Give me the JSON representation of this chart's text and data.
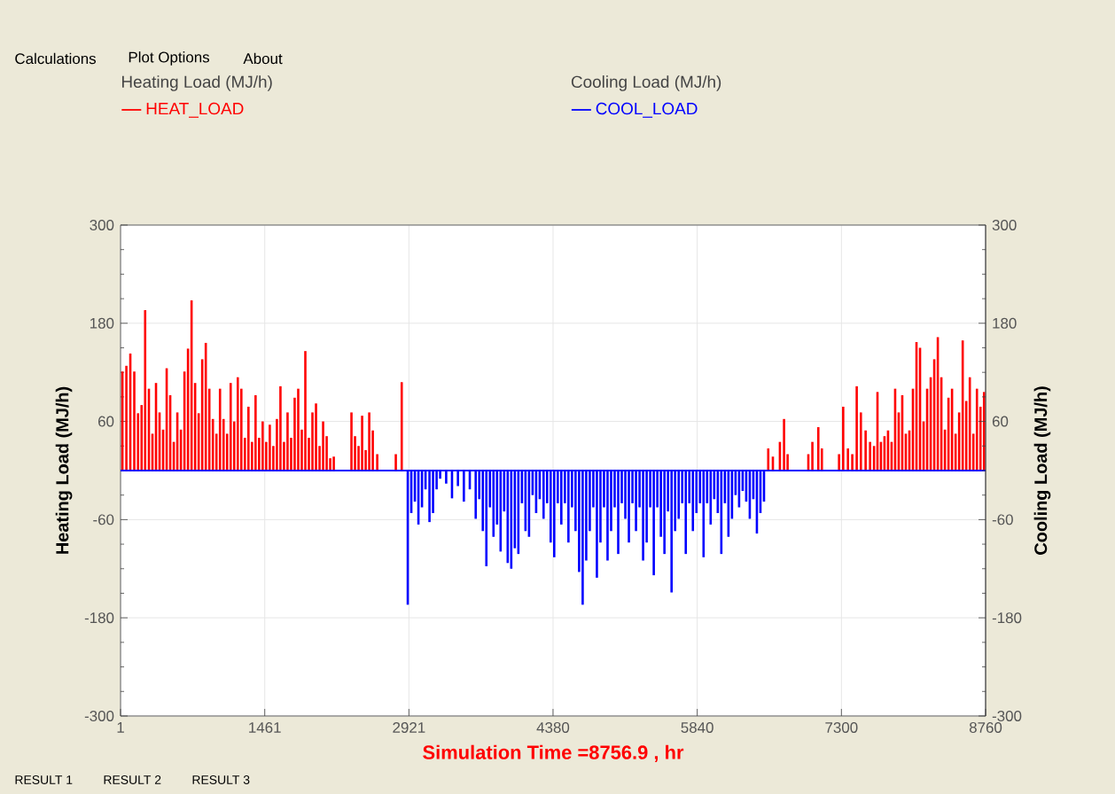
{
  "chart_data": {
    "type": "bar",
    "xlabel": "Simulation Time =8756.9 , hr",
    "ylabel": "Heating Load (MJ/h)",
    "y2label": "Cooling Load (MJ/h)",
    "annotations": [
      "Calculations",
      "Plot Options",
      "About",
      "RESULT 1",
      "RESULT 2",
      "RESULT 3"
    ],
    "xlim": [
      1,
      8760
    ],
    "xticks": [
      1,
      1461,
      2921,
      4380,
      5840,
      7300,
      8760
    ],
    "ylim": [
      -300,
      300
    ],
    "yticks": [
      -300,
      -180,
      -60,
      60,
      180,
      300
    ],
    "y2lim": [
      -300,
      300
    ],
    "y2ticks": [
      -300,
      -180,
      -60,
      60,
      180,
      300
    ],
    "grid": true,
    "legend": "top",
    "ref_lines": [
      {
        "axis": "y",
        "value": 0,
        "color": "#0000ff"
      }
    ],
    "series": [
      {
        "name": "HEAT_LOAD",
        "color": "#ff0000",
        "axis": "y",
        "x": [
          20,
          60,
          100,
          140,
          178,
          214,
          250,
          288,
          324,
          360,
          396,
          432,
          468,
          504,
          540,
          576,
          612,
          648,
          684,
          720,
          756,
          792,
          828,
          864,
          900,
          936,
          972,
          1008,
          1044,
          1080,
          1116,
          1152,
          1188,
          1224,
          1260,
          1296,
          1332,
          1368,
          1404,
          1440,
          1476,
          1512,
          1548,
          1584,
          1620,
          1656,
          1692,
          1728,
          1764,
          1800,
          1836,
          1872,
          1908,
          1944,
          1980,
          2016,
          2052,
          2088,
          2124,
          2160,
          2339,
          2375,
          2411,
          2447,
          2483,
          2519,
          2555,
          2600,
          2788,
          2848,
          6559,
          6606,
          6677,
          6719,
          6755,
          6965,
          7006,
          7066,
          7102,
          7276,
          7318,
          7366,
          7410,
          7455,
          7497,
          7545,
          7590,
          7630,
          7665,
          7700,
          7736,
          7772,
          7808,
          7844,
          7880,
          7916,
          7952,
          7988,
          8024,
          8060,
          8096,
          8132,
          8168,
          8204,
          8240,
          8276,
          8312,
          8348,
          8384,
          8420,
          8456,
          8492,
          8528,
          8564,
          8600,
          8636,
          8672,
          8708,
          8744
        ],
        "values": [
          121,
          128,
          143,
          121,
          70,
          80,
          196,
          100,
          45,
          107,
          71,
          50,
          125,
          92,
          35,
          71,
          50,
          121,
          149,
          208,
          107,
          70,
          136,
          156,
          100,
          63,
          45,
          100,
          63,
          45,
          107,
          60,
          114,
          100,
          40,
          78,
          35,
          92,
          40,
          60,
          35,
          56,
          30,
          63,
          103,
          35,
          71,
          40,
          89,
          100,
          50,
          146,
          40,
          71,
          82,
          30,
          60,
          42,
          15,
          17,
          71,
          42,
          30,
          67,
          25,
          71,
          49,
          20,
          20,
          108,
          27,
          17,
          35,
          63,
          20,
          20,
          35,
          53,
          27,
          20,
          78,
          27,
          20,
          103,
          71,
          49,
          35,
          30,
          96,
          35,
          42,
          49,
          35,
          100,
          71,
          92,
          45,
          49,
          100,
          157,
          150,
          60,
          100,
          114,
          136,
          163,
          114,
          50,
          89,
          100,
          45,
          71,
          159,
          85,
          114,
          45,
          100,
          78,
          96
        ]
      },
      {
        "name": "COOL_LOAD",
        "color": "#0000ff",
        "axis": "y2",
        "x": [
          2909,
          2945,
          2981,
          3017,
          3053,
          3089,
          3129,
          3165,
          3201,
          3237,
          3298,
          3357,
          3417,
          3477,
          3537,
          3597,
          3633,
          3669,
          3705,
          3741,
          3777,
          3813,
          3849,
          3885,
          3921,
          3957,
          3993,
          4029,
          4065,
          4101,
          4137,
          4173,
          4209,
          4245,
          4284,
          4320,
          4356,
          4392,
          4428,
          4464,
          4500,
          4536,
          4572,
          4608,
          4644,
          4680,
          4716,
          4752,
          4788,
          4824,
          4860,
          4896,
          4932,
          4968,
          5004,
          5040,
          5076,
          5112,
          5148,
          5184,
          5220,
          5256,
          5292,
          5328,
          5364,
          5400,
          5436,
          5472,
          5508,
          5544,
          5580,
          5616,
          5652,
          5688,
          5724,
          5760,
          5796,
          5832,
          5868,
          5904,
          5940,
          5976,
          6012,
          6048,
          6084,
          6120,
          6156,
          6192,
          6228,
          6264,
          6300,
          6336,
          6372,
          6408,
          6444,
          6480,
          6516
        ],
        "values": [
          -164,
          -52,
          -38,
          -66,
          -45,
          -23,
          -63,
          -52,
          -23,
          -10,
          -16,
          -34,
          -19,
          -38,
          -23,
          -59,
          -35,
          -74,
          -117,
          -45,
          -81,
          -66,
          -99,
          -50,
          -113,
          -120,
          -95,
          -102,
          -40,
          -74,
          -81,
          -30,
          -52,
          -35,
          -59,
          -40,
          -88,
          -106,
          -40,
          -66,
          -40,
          -88,
          -45,
          -74,
          -124,
          -164,
          -110,
          -74,
          -45,
          -131,
          -88,
          -45,
          -110,
          -74,
          -45,
          -102,
          -40,
          -59,
          -88,
          -40,
          -74,
          -45,
          -110,
          -88,
          -45,
          -128,
          -45,
          -81,
          -102,
          -50,
          -149,
          -74,
          -59,
          -40,
          -102,
          -40,
          -74,
          -52,
          -40,
          -106,
          -40,
          -66,
          -35,
          -52,
          -102,
          -40,
          -81,
          -59,
          -30,
          -45,
          -25,
          -38,
          -59,
          -35,
          -77,
          -52,
          -38
        ]
      }
    ]
  }
}
